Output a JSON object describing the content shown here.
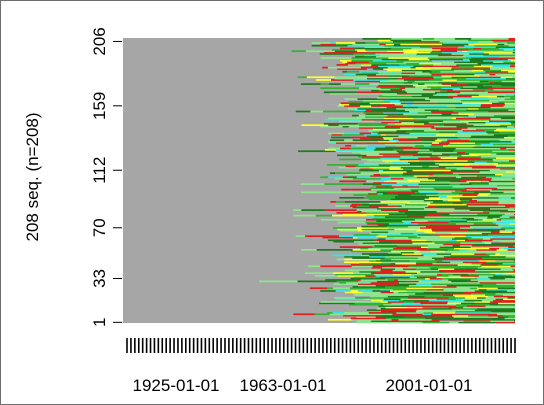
{
  "chart_data": {
    "type": "heatmap",
    "subtype": "sequence-index-plot",
    "ylabel": "208 seq. (n=208)",
    "y_ticks": [
      "1",
      "33",
      "70",
      "112",
      "159",
      "206"
    ],
    "x_ticks": [
      "1925-01-01",
      "1963-01-01",
      "2001-01-01"
    ],
    "n_sequences": 208,
    "background_state_color": "#a6a6a6",
    "state_colors": {
      "dark_green": "#1f7a1f",
      "green": "#33b233",
      "light_green": "#8fe58f",
      "red": "#e02020",
      "yellow": "#ffff33",
      "cyan": "#33e5e5"
    },
    "grid": false,
    "legend": "none"
  }
}
